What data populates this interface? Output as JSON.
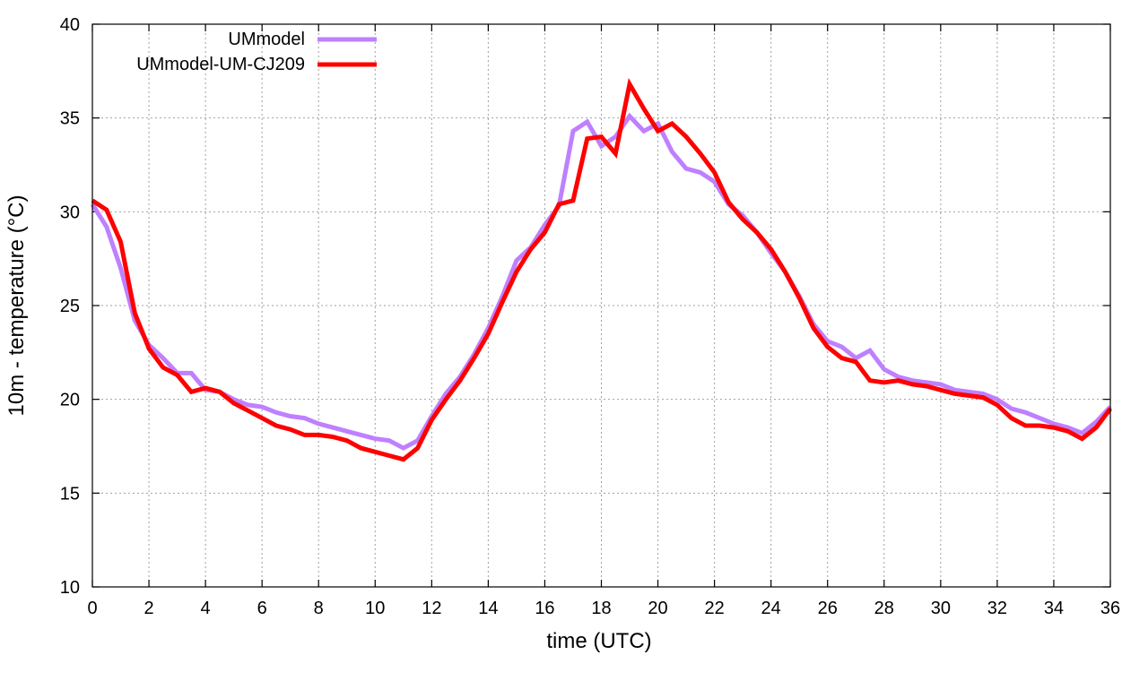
{
  "chart_data": {
    "type": "line",
    "title": "",
    "xlabel": "time (UTC)",
    "ylabel": "10m - temperature (°C)",
    "xlim": [
      0,
      36
    ],
    "ylim": [
      10,
      40
    ],
    "xticks": [
      0,
      2,
      4,
      6,
      8,
      10,
      12,
      14,
      16,
      18,
      20,
      22,
      24,
      26,
      28,
      30,
      32,
      34,
      36
    ],
    "yticks": [
      10,
      15,
      20,
      25,
      30,
      35,
      40
    ],
    "grid": true,
    "legend_position": "top-left",
    "series": [
      {
        "name": "UMmodel",
        "color": "#bf80ff",
        "x": [
          0,
          0.5,
          1,
          1.5,
          2,
          2.5,
          3,
          3.5,
          4,
          4.5,
          5,
          5.5,
          6,
          6.5,
          7,
          7.5,
          8,
          8.5,
          9,
          9.5,
          10,
          10.5,
          11,
          11.5,
          12,
          12.5,
          13,
          13.5,
          14,
          14.5,
          15,
          15.5,
          16,
          16.5,
          17,
          17.5,
          18,
          18.5,
          19,
          19.5,
          20,
          20.5,
          21,
          21.5,
          22,
          22.5,
          23,
          23.5,
          24,
          24.5,
          25,
          25.5,
          26,
          26.5,
          27,
          27.5,
          28,
          28.5,
          29,
          29.5,
          30,
          30.5,
          31,
          31.5,
          32,
          32.5,
          33,
          33.5,
          34,
          34.5,
          35,
          35.5,
          36
        ],
        "y": [
          30.4,
          29.2,
          27.0,
          24.2,
          22.9,
          22.2,
          21.4,
          21.4,
          20.5,
          20.4,
          20.0,
          19.7,
          19.6,
          19.3,
          19.1,
          19.0,
          18.7,
          18.5,
          18.3,
          18.1,
          17.9,
          17.8,
          17.4,
          17.8,
          19.1,
          20.3,
          21.2,
          22.4,
          23.8,
          25.5,
          27.4,
          28.1,
          29.3,
          30.3,
          34.3,
          34.8,
          33.5,
          34.0,
          35.1,
          34.3,
          34.7,
          33.2,
          32.3,
          32.1,
          31.6,
          30.4,
          29.8,
          28.9,
          27.8,
          26.8,
          25.5,
          24.0,
          23.1,
          22.8,
          22.2,
          22.6,
          21.6,
          21.2,
          21.0,
          20.9,
          20.8,
          20.5,
          20.4,
          20.3,
          20.0,
          19.5,
          19.3,
          19.0,
          18.7,
          18.5,
          18.2,
          18.8,
          19.6
        ]
      },
      {
        "name": "UMmodel-UM-CJ209",
        "color": "#ff0000",
        "x": [
          0,
          0.5,
          1,
          1.5,
          2,
          2.5,
          3,
          3.5,
          4,
          4.5,
          5,
          5.5,
          6,
          6.5,
          7,
          7.5,
          8,
          8.5,
          9,
          9.5,
          10,
          10.5,
          11,
          11.5,
          12,
          12.5,
          13,
          13.5,
          14,
          14.5,
          15,
          15.5,
          16,
          16.5,
          17,
          17.5,
          18,
          18.5,
          19,
          19.5,
          20,
          20.5,
          21,
          21.5,
          22,
          22.5,
          23,
          23.5,
          24,
          24.5,
          25,
          25.5,
          26,
          26.5,
          27,
          27.5,
          28,
          28.5,
          29,
          29.5,
          30,
          30.5,
          31,
          31.5,
          32,
          32.5,
          33,
          33.5,
          34,
          34.5,
          35,
          35.5,
          36
        ],
        "y": [
          30.6,
          30.1,
          28.4,
          24.6,
          22.7,
          21.7,
          21.3,
          20.4,
          20.6,
          20.4,
          19.8,
          19.4,
          19.0,
          18.6,
          18.4,
          18.1,
          18.1,
          18.0,
          17.8,
          17.4,
          17.2,
          17.0,
          16.8,
          17.4,
          18.9,
          20.0,
          21.0,
          22.2,
          23.5,
          25.2,
          26.8,
          28.0,
          28.9,
          30.4,
          30.6,
          33.9,
          34.0,
          33.1,
          36.8,
          35.5,
          34.3,
          34.7,
          34.0,
          33.1,
          32.1,
          30.5,
          29.6,
          28.9,
          28.0,
          26.8,
          25.4,
          23.8,
          22.8,
          22.2,
          22.0,
          21.0,
          20.9,
          21.0,
          20.8,
          20.7,
          20.5,
          20.3,
          20.2,
          20.1,
          19.7,
          19.0,
          18.6,
          18.6,
          18.5,
          18.3,
          17.9,
          18.5,
          19.5
        ]
      }
    ]
  }
}
